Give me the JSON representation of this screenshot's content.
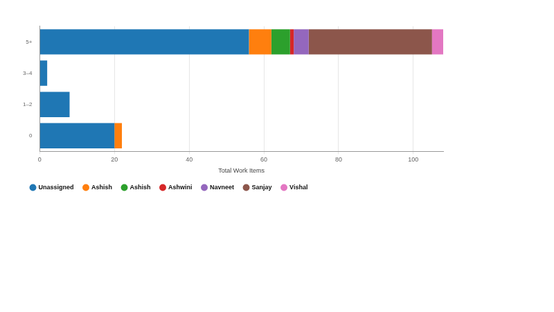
{
  "chart_data": {
    "type": "bar",
    "orientation": "horizontal",
    "stacked": true,
    "x_label": "Total Work Items",
    "categories": [
      "5+",
      "3–4",
      "1–2",
      "0"
    ],
    "series": [
      {
        "name": "Unassigned",
        "color": "#1f77b4",
        "values": [
          56,
          2,
          8,
          20
        ]
      },
      {
        "name": "Ashish",
        "color": "#ff7f0e",
        "values": [
          6,
          0,
          0,
          2
        ]
      },
      {
        "name": "Ashish",
        "color": "#2ca02c",
        "values": [
          5,
          0,
          0,
          0
        ]
      },
      {
        "name": "Ashwini",
        "color": "#d62728",
        "values": [
          1,
          0,
          0,
          0
        ]
      },
      {
        "name": "Navneet",
        "color": "#9467bd",
        "values": [
          4,
          0,
          0,
          0
        ]
      },
      {
        "name": "Sanjay",
        "color": "#8c564b",
        "values": [
          33,
          0,
          0,
          0
        ]
      },
      {
        "name": "Vishal",
        "color": "#e377c2",
        "values": [
          3,
          0,
          0,
          0
        ]
      }
    ],
    "xlim": [
      0,
      108
    ],
    "xticks": [
      0,
      20,
      40,
      60,
      80,
      100
    ],
    "grid": true,
    "legend": "bottom-left"
  }
}
